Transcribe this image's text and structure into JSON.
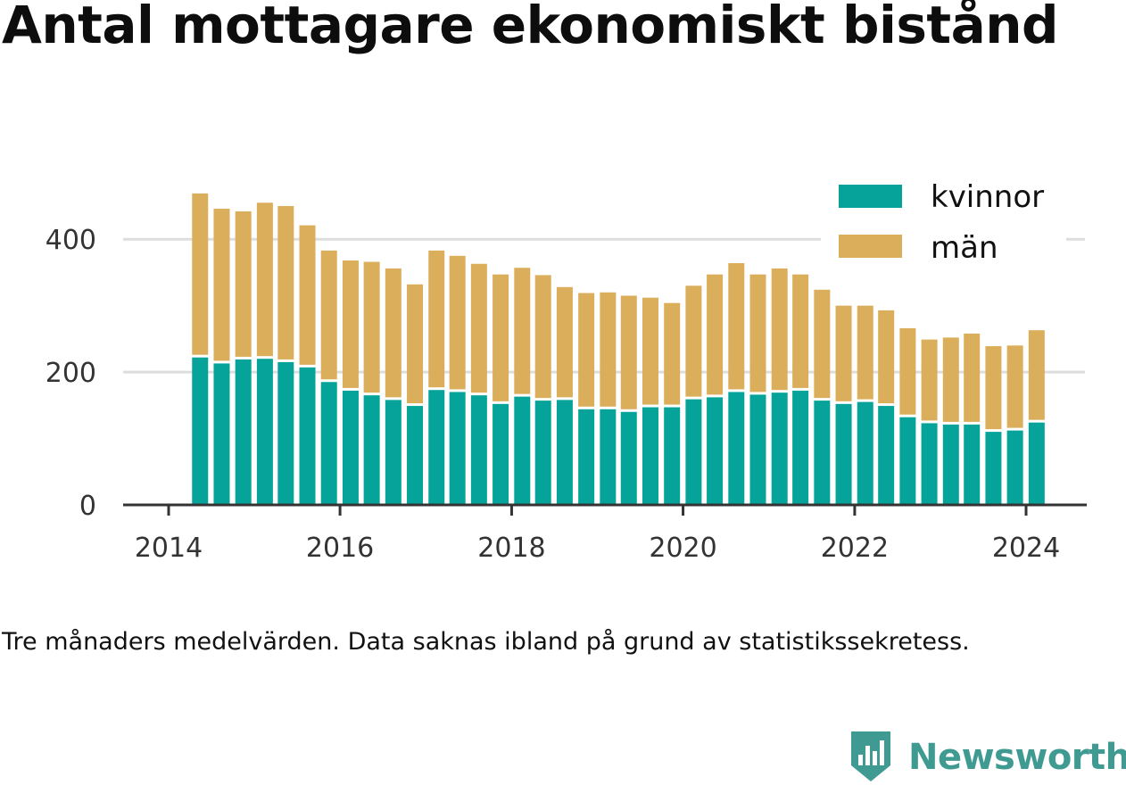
{
  "title": "Antal mottagare ekonomiskt bistånd",
  "note": "Tre månaders medelvärden. Data saknas ibland på grund av statistikssekretess.",
  "brand": {
    "name": "Newsworthy",
    "logo_icon": "newsworthy-logo-icon"
  },
  "colors": {
    "kvinnor": "#05a399",
    "man": "#dbae5b",
    "grid": "#dddddd",
    "axis": "#333333"
  },
  "chart_data": {
    "type": "bar",
    "stacked": true,
    "xlabel": "",
    "ylabel": "",
    "ylim": [
      0,
      470
    ],
    "yticks": [
      0,
      200,
      400
    ],
    "xticks": [
      "2014",
      "2016",
      "2018",
      "2020",
      "2022",
      "2024"
    ],
    "legend": {
      "position": "top-right"
    },
    "grid": true,
    "series": [
      {
        "name": "kvinnor",
        "values": [
          222,
          213,
          219,
          220,
          215,
          207,
          185,
          172,
          165,
          158,
          149,
          173,
          170,
          165,
          152,
          163,
          157,
          158,
          144,
          144,
          140,
          147,
          147,
          159,
          162,
          170,
          166,
          169,
          172,
          157,
          152,
          155,
          149,
          132,
          123,
          121,
          121,
          110,
          112,
          124
        ]
      },
      {
        "name": "män",
        "values": [
          247,
          233,
          223,
          235,
          235,
          214,
          198,
          196,
          201,
          198,
          183,
          210,
          205,
          198,
          195,
          194,
          189,
          170,
          175,
          176,
          175,
          165,
          157,
          171,
          185,
          194,
          181,
          187,
          175,
          167,
          148,
          145,
          144,
          134,
          126,
          131,
          137,
          129,
          128,
          139
        ]
      }
    ],
    "x": [
      "2014-05",
      "2014-08",
      "2014-11",
      "2015-02",
      "2015-05",
      "2015-08",
      "2015-11",
      "2016-02",
      "2016-05",
      "2016-08",
      "2016-11",
      "2017-02",
      "2017-05",
      "2017-08",
      "2017-11",
      "2018-02",
      "2018-05",
      "2018-08",
      "2018-11",
      "2019-02",
      "2019-05",
      "2019-08",
      "2019-11",
      "2020-02",
      "2020-05",
      "2020-08",
      "2020-11",
      "2021-02",
      "2021-05",
      "2021-08",
      "2021-11",
      "2022-02",
      "2022-05",
      "2022-08",
      "2022-11",
      "2023-02",
      "2023-05",
      "2023-08",
      "2023-11",
      "2024-02"
    ]
  }
}
